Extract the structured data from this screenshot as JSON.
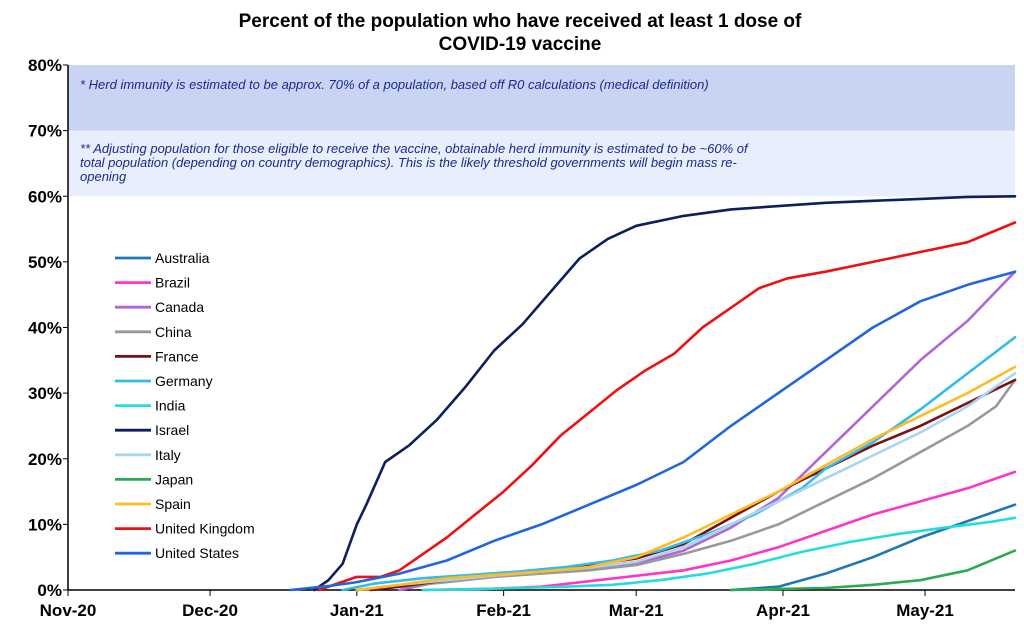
{
  "chart_data": {
    "type": "line",
    "title_line1": "Percent of the population who have received at least 1 dose of",
    "title_line2": "COVID-19 vaccine",
    "xlabel": "",
    "ylabel": "",
    "x_ticks": [
      "Nov-20",
      "Dec-20",
      "Jan-21",
      "Feb-21",
      "Mar-21",
      "Apr-21",
      "May-21"
    ],
    "x_tick_days": [
      0,
      30,
      61,
      92,
      120,
      151,
      181
    ],
    "x_range_days": [
      0,
      200
    ],
    "y_ticks": [
      "0%",
      "10%",
      "20%",
      "30%",
      "40%",
      "50%",
      "60%",
      "70%",
      "80%"
    ],
    "y_tick_values": [
      0,
      10,
      20,
      30,
      40,
      50,
      60,
      70,
      80
    ],
    "ylim": [
      0,
      80
    ],
    "bands": [
      {
        "from": 70,
        "to": 80,
        "color": "#c9d4f5"
      },
      {
        "from": 60,
        "to": 70,
        "color": "#e8eefc"
      }
    ],
    "notes": [
      "* Herd immunity is estimated to be approx. 70% of a population, based off R0 calculations (medical definition)",
      "** Adjusting population for those eligible to receive the vaccine, obtainable herd immunity is estimated to be ~60% of",
      "total population (depending on country demographics). This is the likely threshold governments will begin mass re-",
      "opening"
    ],
    "legend_position": "left",
    "series": [
      {
        "name": "Australia",
        "color": "#1f77b4",
        "points": [
          [
            140,
            0
          ],
          [
            150,
            0.5
          ],
          [
            160,
            2.5
          ],
          [
            170,
            5
          ],
          [
            180,
            8
          ],
          [
            190,
            10.5
          ],
          [
            200,
            13
          ]
        ]
      },
      {
        "name": "Brazil",
        "color": "#ff33cc",
        "points": [
          [
            75,
            0
          ],
          [
            90,
            0.2
          ],
          [
            100,
            0.5
          ],
          [
            130,
            3
          ],
          [
            140,
            4.5
          ],
          [
            150,
            6.5
          ],
          [
            160,
            9
          ],
          [
            170,
            11.5
          ],
          [
            180,
            13.5
          ],
          [
            190,
            15.5
          ],
          [
            200,
            18
          ]
        ]
      },
      {
        "name": "Canada",
        "color": "#b266d6",
        "points": [
          [
            70,
            0
          ],
          [
            80,
            1.5
          ],
          [
            90,
            2.2
          ],
          [
            100,
            2.7
          ],
          [
            110,
            3.2
          ],
          [
            120,
            4
          ],
          [
            130,
            6
          ],
          [
            140,
            9.5
          ],
          [
            150,
            14
          ],
          [
            160,
            21
          ],
          [
            170,
            28
          ],
          [
            180,
            35
          ],
          [
            190,
            41
          ],
          [
            200,
            48.5
          ]
        ]
      },
      {
        "name": "China",
        "color": "#999999",
        "points": [
          [
            61,
            0
          ],
          [
            70,
            0.5
          ],
          [
            80,
            1.2
          ],
          [
            90,
            2
          ],
          [
            100,
            2.5
          ],
          [
            110,
            3
          ],
          [
            120,
            3.8
          ],
          [
            130,
            5.5
          ],
          [
            140,
            7.5
          ],
          [
            150,
            10
          ],
          [
            160,
            13.5
          ],
          [
            170,
            17
          ],
          [
            180,
            21
          ],
          [
            190,
            25
          ],
          [
            196,
            28
          ],
          [
            200,
            32
          ]
        ]
      },
      {
        "name": "France",
        "color": "#7a1010",
        "points": [
          [
            64,
            0
          ],
          [
            70,
            0.5
          ],
          [
            80,
            1.5
          ],
          [
            90,
            2.3
          ],
          [
            100,
            3
          ],
          [
            110,
            3.8
          ],
          [
            120,
            4.8
          ],
          [
            130,
            7
          ],
          [
            140,
            11
          ],
          [
            150,
            15
          ],
          [
            160,
            18.5
          ],
          [
            170,
            22
          ],
          [
            180,
            25
          ],
          [
            190,
            28.5
          ],
          [
            200,
            32
          ]
        ]
      },
      {
        "name": "Germany",
        "color": "#33bbee",
        "points": [
          [
            58,
            0
          ],
          [
            65,
            1
          ],
          [
            75,
            1.8
          ],
          [
            85,
            2.3
          ],
          [
            95,
            2.8
          ],
          [
            105,
            3.5
          ],
          [
            115,
            4.5
          ],
          [
            125,
            6
          ],
          [
            135,
            8.5
          ],
          [
            145,
            11.5
          ],
          [
            155,
            15.5
          ],
          [
            160,
            18.5
          ],
          [
            170,
            22.5
          ],
          [
            180,
            27.5
          ],
          [
            190,
            33
          ],
          [
            200,
            38.5
          ]
        ]
      },
      {
        "name": "India",
        "color": "#22dddd",
        "points": [
          [
            75,
            0
          ],
          [
            85,
            0.1
          ],
          [
            95,
            0.3
          ],
          [
            105,
            0.5
          ],
          [
            115,
            0.8
          ],
          [
            125,
            1.5
          ],
          [
            135,
            2.5
          ],
          [
            145,
            4
          ],
          [
            155,
            5.8
          ],
          [
            165,
            7.3
          ],
          [
            175,
            8.5
          ],
          [
            185,
            9.5
          ],
          [
            195,
            10.4
          ],
          [
            200,
            11
          ]
        ]
      },
      {
        "name": "Israel",
        "color": "#0d1f5c",
        "points": [
          [
            52,
            0
          ],
          [
            55,
            1.5
          ],
          [
            58,
            4
          ],
          [
            61,
            10
          ],
          [
            63,
            13
          ],
          [
            67,
            19.5
          ],
          [
            72,
            22
          ],
          [
            78,
            26
          ],
          [
            84,
            31
          ],
          [
            90,
            36.5
          ],
          [
            96,
            40.5
          ],
          [
            102,
            45.5
          ],
          [
            108,
            50.5
          ],
          [
            114,
            53.5
          ],
          [
            120,
            55.5
          ],
          [
            130,
            57
          ],
          [
            140,
            58
          ],
          [
            150,
            58.5
          ],
          [
            160,
            59
          ],
          [
            170,
            59.3
          ],
          [
            180,
            59.6
          ],
          [
            190,
            59.9
          ],
          [
            200,
            60
          ]
        ]
      },
      {
        "name": "Italy",
        "color": "#aad4ee",
        "points": [
          [
            61,
            0
          ],
          [
            70,
            0.8
          ],
          [
            80,
            1.5
          ],
          [
            90,
            2.2
          ],
          [
            100,
            2.8
          ],
          [
            110,
            3.4
          ],
          [
            120,
            4.3
          ],
          [
            130,
            6.5
          ],
          [
            140,
            10
          ],
          [
            150,
            13.5
          ],
          [
            160,
            17
          ],
          [
            170,
            20.5
          ],
          [
            180,
            24
          ],
          [
            190,
            28
          ],
          [
            200,
            33
          ]
        ]
      },
      {
        "name": "Japan",
        "color": "#2aaa55",
        "points": [
          [
            140,
            0
          ],
          [
            160,
            0.3
          ],
          [
            170,
            0.8
          ],
          [
            180,
            1.5
          ],
          [
            190,
            3
          ],
          [
            200,
            6
          ]
        ]
      },
      {
        "name": "Spain",
        "color": "#ffbb22",
        "points": [
          [
            61,
            0
          ],
          [
            70,
            0.8
          ],
          [
            80,
            1.8
          ],
          [
            90,
            2.3
          ],
          [
            100,
            2.8
          ],
          [
            110,
            3.5
          ],
          [
            120,
            5
          ],
          [
            130,
            8
          ],
          [
            140,
            11.5
          ],
          [
            150,
            15
          ],
          [
            160,
            19
          ],
          [
            170,
            23
          ],
          [
            180,
            26.5
          ],
          [
            190,
            30
          ],
          [
            200,
            34
          ]
        ]
      },
      {
        "name": "United Kingdom",
        "color": "#ee1111",
        "points": [
          [
            53,
            0
          ],
          [
            57,
            1
          ],
          [
            61,
            2
          ],
          [
            66,
            2
          ],
          [
            70,
            3
          ],
          [
            75,
            5.5
          ],
          [
            80,
            8
          ],
          [
            86,
            11.5
          ],
          [
            92,
            15
          ],
          [
            98,
            19
          ],
          [
            104,
            23.5
          ],
          [
            110,
            27
          ],
          [
            116,
            30.5
          ],
          [
            122,
            33.5
          ],
          [
            128,
            36
          ],
          [
            134,
            40
          ],
          [
            140,
            43
          ],
          [
            146,
            46
          ],
          [
            152,
            47.5
          ],
          [
            160,
            48.5
          ],
          [
            170,
            50
          ],
          [
            180,
            51.5
          ],
          [
            190,
            53
          ],
          [
            200,
            56
          ]
        ]
      },
      {
        "name": "United States",
        "color": "#2266dd",
        "points": [
          [
            47,
            0
          ],
          [
            55,
            0.6
          ],
          [
            61,
            1.2
          ],
          [
            70,
            2.5
          ],
          [
            80,
            4.5
          ],
          [
            90,
            7.5
          ],
          [
            100,
            10
          ],
          [
            110,
            13
          ],
          [
            120,
            16
          ],
          [
            130,
            19.5
          ],
          [
            140,
            25
          ],
          [
            150,
            30
          ],
          [
            160,
            35
          ],
          [
            170,
            40
          ],
          [
            180,
            44
          ],
          [
            190,
            46.5
          ],
          [
            200,
            48.5
          ]
        ]
      }
    ]
  }
}
